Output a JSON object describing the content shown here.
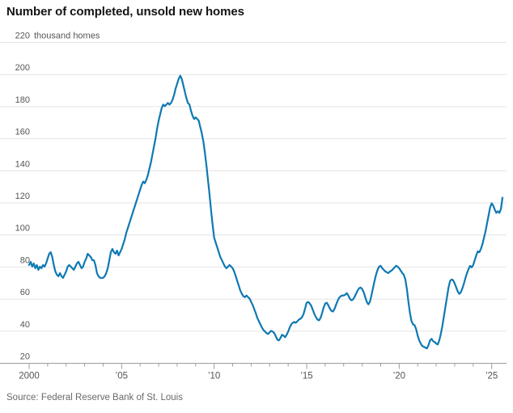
{
  "title": "Number of completed, unsold new homes",
  "source": "Source: Federal Reserve Bank of St. Louis",
  "colors": {
    "line": "#0e79b3",
    "grid": "#e4e4e4",
    "axis": "#9c9c9c",
    "tick_label": "#555555",
    "title": "#141414",
    "source": "#696969"
  },
  "y_axis": {
    "unit_suffix": "thousand homes",
    "ticks": [
      220,
      200,
      180,
      160,
      140,
      120,
      100,
      80,
      60,
      40,
      20
    ]
  },
  "x_axis": {
    "labels": [
      {
        "year": 2000,
        "text": "2000"
      },
      {
        "year": 2005,
        "text": "’05"
      },
      {
        "year": 2010,
        "text": "’10"
      },
      {
        "year": 2015,
        "text": "’15"
      },
      {
        "year": 2020,
        "text": "’20"
      },
      {
        "year": 2025,
        "text": "’25"
      }
    ],
    "minor_tick_start": 2000,
    "minor_tick_end": 2025
  },
  "chart_data": {
    "type": "line",
    "title": "Number of completed, unsold new homes",
    "ylabel": "220 thousand homes",
    "xlabel": "",
    "unit": "thousand homes",
    "grid": "horizontal gridlines on",
    "legend_position": "none",
    "xlim": [
      2000,
      2025.583
    ],
    "ylim": [
      20,
      220
    ],
    "x_start_year": 2000,
    "frequency": "monthly",
    "series": [
      {
        "name": "Completed, unsold new homes",
        "values": [
          81,
          83,
          80,
          82,
          79,
          81,
          78,
          80,
          79,
          81,
          80,
          82,
          85,
          88,
          89,
          86,
          81,
          77,
          75,
          74,
          76,
          74,
          73,
          75,
          77,
          80,
          81,
          80,
          79,
          78,
          80,
          82,
          83,
          81,
          79,
          80,
          83,
          85,
          88,
          87,
          86,
          84,
          84,
          81,
          76,
          74,
          73,
          73,
          73,
          74,
          76,
          79,
          84,
          89,
          91,
          89,
          88,
          90,
          87,
          89,
          91,
          94,
          97,
          101,
          104,
          107,
          110,
          113,
          116,
          119,
          122,
          125,
          128,
          131,
          133,
          132,
          134,
          137,
          141,
          145,
          150,
          155,
          160,
          166,
          171,
          175,
          179,
          181,
          180,
          181,
          182,
          181,
          182,
          184,
          187,
          191,
          194,
          197,
          199,
          197,
          193,
          189,
          185,
          182,
          181,
          177,
          174,
          172,
          173,
          172,
          171,
          167,
          163,
          158,
          151,
          143,
          134,
          125,
          115,
          106,
          98,
          95,
          92,
          89,
          86,
          84,
          82,
          80,
          79,
          80,
          81,
          80,
          79,
          77,
          74,
          71,
          68,
          65,
          63,
          61.5,
          61,
          62,
          61,
          60,
          58,
          56,
          53.5,
          51,
          48,
          46,
          44,
          42,
          40.5,
          39.5,
          38.5,
          38,
          39,
          40,
          39.5,
          38.5,
          36.5,
          34.5,
          34,
          35.5,
          37.5,
          37,
          36,
          37.5,
          39.5,
          42,
          44,
          45,
          45.5,
          45,
          46,
          47,
          47.5,
          48.5,
          50.5,
          54,
          57.5,
          58,
          57,
          55.5,
          53,
          50.5,
          48.5,
          47,
          46.5,
          48,
          51,
          54.5,
          57,
          57.5,
          56,
          54,
          52.5,
          52,
          53.5,
          56,
          58.5,
          60.5,
          61.5,
          62,
          62,
          62.5,
          63.5,
          62,
          60,
          59,
          59.5,
          61,
          63,
          65,
          66.5,
          67,
          66,
          64,
          61,
          58,
          56.5,
          58,
          62,
          66.5,
          71,
          75,
          78,
          80,
          80.5,
          79,
          78,
          77,
          76.5,
          76,
          77,
          77.5,
          78.5,
          79.5,
          80.5,
          80,
          79,
          77.5,
          76,
          75,
          72,
          66,
          58,
          51,
          46,
          44,
          43.5,
          41,
          37,
          34,
          32,
          30.5,
          30,
          29.5,
          29,
          31,
          34,
          35,
          33.5,
          33,
          32,
          31.5,
          34,
          38,
          43,
          49,
          55,
          61,
          67,
          71,
          72,
          71.5,
          69.5,
          67,
          64.5,
          63,
          64,
          66.5,
          69.5,
          73,
          76,
          78.5,
          80.5,
          79.5,
          81,
          84,
          87,
          89.5,
          89,
          91,
          94,
          98,
          102,
          107,
          112,
          117,
          119.5,
          118,
          115.5,
          113.5,
          114.5,
          113.5,
          116,
          123
        ]
      }
    ]
  }
}
